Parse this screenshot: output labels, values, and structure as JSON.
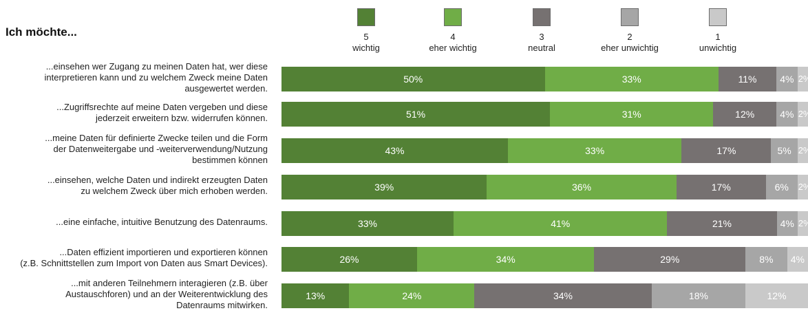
{
  "heading": "Ich möchte...",
  "colors": [
    "#538135",
    "#70ad47",
    "#767171",
    "#a6a6a6",
    "#c9c9c9"
  ],
  "legend": [
    {
      "number": "5",
      "label": "wichtig"
    },
    {
      "number": "4",
      "label": "eher wichtig"
    },
    {
      "number": "3",
      "label": "neutral"
    },
    {
      "number": "2",
      "label": "eher unwichtig"
    },
    {
      "number": "1",
      "label": "unwichtig"
    }
  ],
  "chart_data": {
    "type": "bar",
    "orientation": "horizontal",
    "stacked": true,
    "xlim": [
      0,
      100
    ],
    "unit": "%",
    "categories": [
      [
        "...einsehen wer Zugang zu meinen Daten hat, wer diese",
        "interpretieren kann und zu welchem Zweck meine Daten",
        "ausgewertet werden."
      ],
      [
        "...Zugriffsrechte auf meine Daten vergeben und diese",
        "jederzeit erweitern bzw. widerrufen können."
      ],
      [
        "...meine Daten für definierte Zwecke teilen und die Form",
        "der Datenweitergabe und -weiterverwendung/Nutzung",
        "bestimmen können"
      ],
      [
        "...einsehen, welche Daten und indirekt erzeugten Daten",
        "zu welchem Zweck über mich erhoben werden."
      ],
      [
        "...eine einfache, intuitive Benutzung des Datenraums."
      ],
      [
        "...Daten effizient importieren und exportieren können",
        "(z.B. Schnittstellen zum Import von Daten aus Smart Devices)."
      ],
      [
        "...mit anderen Teilnehmern interagieren (z.B. über",
        "Austauschforen) und an der Weiterentwicklung des",
        "Datenraums mitwirken."
      ]
    ],
    "series": [
      {
        "name": "5 wichtig",
        "values": [
          50,
          51,
          43,
          39,
          33,
          26,
          13
        ]
      },
      {
        "name": "4 eher wichtig",
        "values": [
          33,
          31,
          33,
          36,
          41,
          34,
          24
        ]
      },
      {
        "name": "3 neutral",
        "values": [
          11,
          12,
          17,
          17,
          21,
          29,
          34
        ]
      },
      {
        "name": "2 eher unwichtig",
        "values": [
          4,
          4,
          5,
          6,
          4,
          8,
          18
        ]
      },
      {
        "name": "1 unwichtig",
        "values": [
          2,
          2,
          2,
          2,
          2,
          4,
          12
        ]
      }
    ]
  }
}
